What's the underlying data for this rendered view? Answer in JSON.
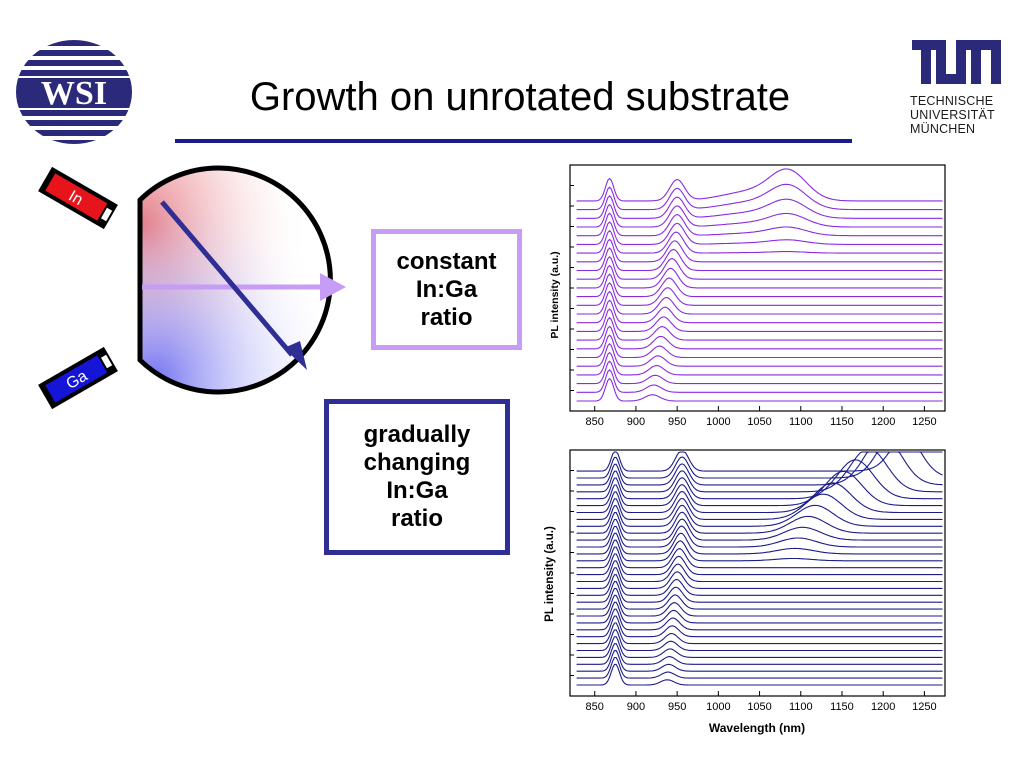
{
  "slide": {
    "title": "Growth on unrotated substrate",
    "logo_left": "WSI",
    "logo_right": {
      "mark": "TUM",
      "lines": [
        "TECHNISCHE",
        "UNIVERSITÄT",
        "MÜNCHEN"
      ]
    }
  },
  "diagram": {
    "source_in": "In",
    "source_ga": "Ga",
    "colors": {
      "in_source": "#e8141c",
      "ga_source": "#1515d8",
      "arrow_constant": "#c79cf5",
      "arrow_gradual": "#2e2e94"
    }
  },
  "labels": {
    "constant": [
      "constant",
      "In:Ga",
      "ratio"
    ],
    "gradual": [
      "gradually",
      "changing",
      "In:Ga",
      "ratio"
    ]
  },
  "chart_data": [
    {
      "type": "line",
      "title": "",
      "xlabel": "",
      "ylabel": "PL intensity (a.u.)",
      "xlim": [
        820,
        1275
      ],
      "xticks": [
        850,
        900,
        950,
        1000,
        1050,
        1100,
        1150,
        1200,
        1250
      ],
      "color": "#8a2be2",
      "stacked_offset": true,
      "series_count": 24,
      "peaks": [
        {
          "position_nm": 870,
          "shift_per_trace_nm": 0,
          "note": "constant GaAs-like peak"
        },
        {
          "position_start_nm": 920,
          "position_end_nm": 950,
          "note": "peak shifts with trace"
        },
        {
          "position_nm": 1085,
          "note": "broad band appearing in top traces"
        }
      ]
    },
    {
      "type": "line",
      "title": "",
      "xlabel": "Wavelength (nm)",
      "ylabel": "PL intensity (a.u.)",
      "xlim": [
        820,
        1275
      ],
      "xticks": [
        850,
        900,
        950,
        1000,
        1050,
        1100,
        1150,
        1200,
        1250
      ],
      "color": "#1c1c8a",
      "stacked_offset": true,
      "series_count": 32,
      "peaks": [
        {
          "position_nm": 875,
          "shift_per_trace_nm": 0,
          "note": "constant peak"
        },
        {
          "position_start_nm": 935,
          "position_end_nm": 955,
          "note": "peak shifts with trace"
        },
        {
          "position_start_nm": 1090,
          "position_end_nm": 1240,
          "note": "long-wavelength band red-shifting in top traces"
        }
      ]
    }
  ]
}
